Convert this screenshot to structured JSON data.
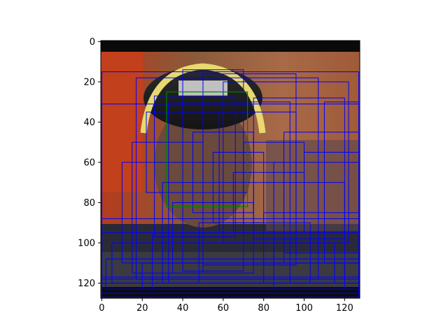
{
  "chart_data": {
    "type": "heatmap",
    "title": "",
    "xlabel": "",
    "ylabel": "",
    "xlim": [
      -0.5,
      127.5
    ],
    "ylim": [
      127.5,
      -0.5
    ],
    "x_ticks": [
      0,
      20,
      40,
      60,
      80,
      100,
      120
    ],
    "y_ticks": [
      0,
      20,
      40,
      60,
      80,
      100,
      120
    ],
    "image_size": [
      128,
      128
    ],
    "grid": false,
    "colors": {
      "detection_boxes": "#0000ff",
      "ground_truth_box": "#008000"
    },
    "ground_truth_box": {
      "x": 32,
      "y": 25,
      "width": 40,
      "height": 57
    },
    "detection_boxes_sample": [
      {
        "x": 0,
        "y": 15,
        "width": 127,
        "height": 110
      },
      {
        "x": 0,
        "y": 31,
        "width": 127,
        "height": 96
      },
      {
        "x": 17,
        "y": 18,
        "width": 90,
        "height": 100
      },
      {
        "x": 33,
        "y": 30,
        "width": 60,
        "height": 90
      },
      {
        "x": 40,
        "y": 14,
        "width": 30,
        "height": 100
      },
      {
        "x": 50,
        "y": 16,
        "width": 46,
        "height": 95
      },
      {
        "x": 26,
        "y": 27,
        "width": 40,
        "height": 70
      },
      {
        "x": 22,
        "y": 35,
        "width": 50,
        "height": 40
      },
      {
        "x": 58,
        "y": 35,
        "width": 38,
        "height": 60
      },
      {
        "x": 60,
        "y": 20,
        "width": 62,
        "height": 80
      },
      {
        "x": 75,
        "y": 28,
        "width": 45,
        "height": 70
      },
      {
        "x": 10,
        "y": 60,
        "width": 80,
        "height": 50
      },
      {
        "x": 30,
        "y": 70,
        "width": 90,
        "height": 50
      },
      {
        "x": 0,
        "y": 88,
        "width": 127,
        "height": 30
      },
      {
        "x": 0,
        "y": 95,
        "width": 127,
        "height": 25
      },
      {
        "x": 5,
        "y": 100,
        "width": 110,
        "height": 20
      },
      {
        "x": 2,
        "y": 108,
        "width": 125,
        "height": 15
      },
      {
        "x": 20,
        "y": 110,
        "width": 100,
        "height": 13
      },
      {
        "x": 0,
        "y": 117,
        "width": 127,
        "height": 10
      },
      {
        "x": 90,
        "y": 45,
        "width": 37,
        "height": 60
      },
      {
        "x": 100,
        "y": 55,
        "width": 27,
        "height": 40
      },
      {
        "x": 85,
        "y": 60,
        "width": 42,
        "height": 50
      },
      {
        "x": 110,
        "y": 30,
        "width": 17,
        "height": 80
      },
      {
        "x": 45,
        "y": 45,
        "width": 30,
        "height": 40
      },
      {
        "x": 55,
        "y": 55,
        "width": 25,
        "height": 35
      },
      {
        "x": 65,
        "y": 65,
        "width": 35,
        "height": 30
      },
      {
        "x": 70,
        "y": 50,
        "width": 30,
        "height": 45
      },
      {
        "x": 35,
        "y": 80,
        "width": 40,
        "height": 35
      },
      {
        "x": 48,
        "y": 90,
        "width": 55,
        "height": 30
      },
      {
        "x": 80,
        "y": 85,
        "width": 47,
        "height": 35
      },
      {
        "x": 15,
        "y": 50,
        "width": 35,
        "height": 65
      },
      {
        "x": 25,
        "y": 95,
        "width": 60,
        "height": 28
      }
    ]
  }
}
